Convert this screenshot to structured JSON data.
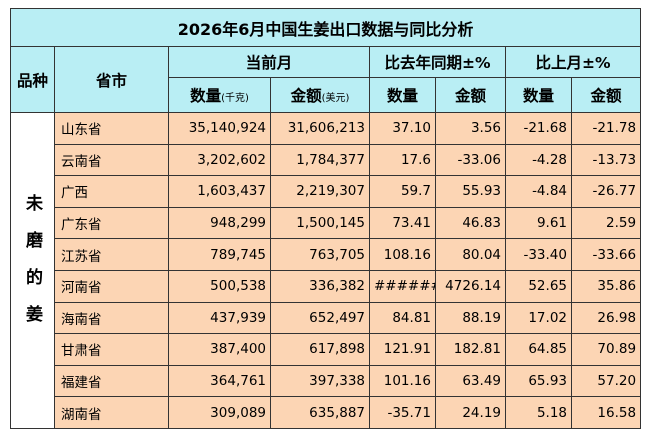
{
  "title": "2026年6月中国生姜出口数据与同比分析",
  "header": {
    "variety": "品种",
    "province": "省市",
    "groups": [
      "当前月",
      "比去年同期±%",
      "比上月±%"
    ],
    "sub": [
      {
        "label": "数量",
        "unit": "(千克)"
      },
      {
        "label": "金额",
        "unit": "(美元)"
      },
      {
        "label": "数量"
      },
      {
        "label": "金额"
      },
      {
        "label": "数量"
      },
      {
        "label": "金额"
      }
    ]
  },
  "variety": "未磨的姜",
  "table": {
    "rows": [
      [
        "山东省",
        "35,140,924",
        "31,606,213",
        "37.10",
        "3.56",
        "-21.68",
        "-21.78"
      ],
      [
        "云南省",
        "3,202,602",
        "1,784,377",
        "17.6",
        "-33.06",
        "-4.28",
        "-13.73"
      ],
      [
        "广西",
        "1,603,437",
        "2,219,307",
        "59.7",
        "55.93",
        "-4.84",
        "-26.77"
      ],
      [
        "广东省",
        "948,299",
        "1,500,145",
        "73.41",
        "46.83",
        "9.61",
        "2.59"
      ],
      [
        "江苏省",
        "789,745",
        "763,705",
        "108.16",
        "80.04",
        "-33.40",
        "-33.66"
      ],
      [
        "河南省",
        "500,538",
        "336,382",
        "#######",
        "4726.14",
        "52.65",
        "35.86"
      ],
      [
        "海南省",
        "437,939",
        "652,497",
        "84.81",
        "88.19",
        "17.02",
        "26.98"
      ],
      [
        "甘肃省",
        "387,400",
        "617,898",
        "121.91",
        "182.81",
        "64.85",
        "70.89"
      ],
      [
        "福建省",
        "364,761",
        "397,338",
        "101.16",
        "63.49",
        "65.93",
        "57.20"
      ],
      [
        "湖南省",
        "309,089",
        "635,887",
        "-35.71",
        "24.19",
        "5.18",
        "16.58"
      ]
    ]
  }
}
